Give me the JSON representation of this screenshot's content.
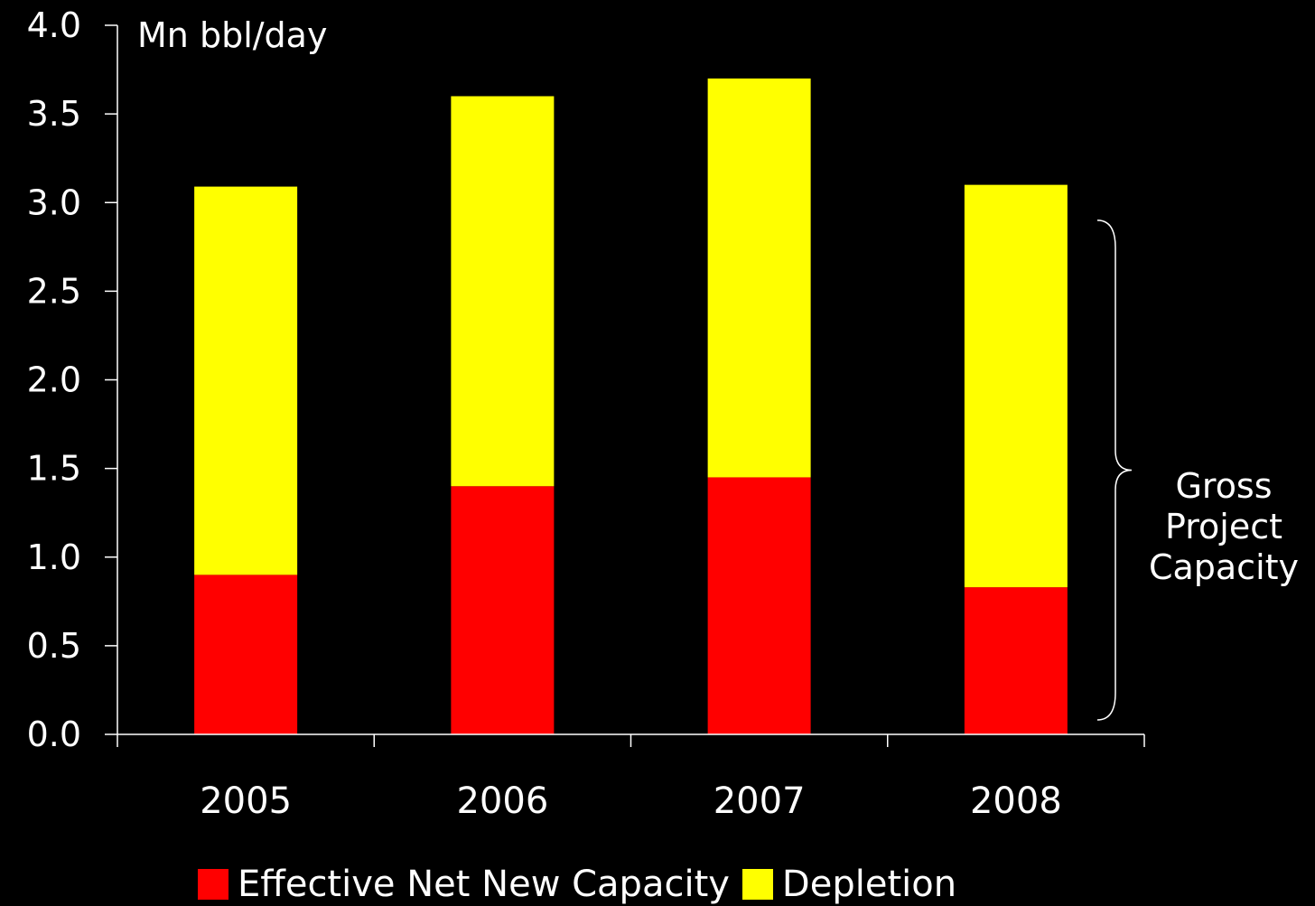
{
  "chart_data": {
    "type": "bar",
    "stacked": true,
    "categories": [
      "2005",
      "2006",
      "2007",
      "2008"
    ],
    "series": [
      {
        "name": "Effective Net New Capacity",
        "color": "#ff0000",
        "values": [
          0.9,
          1.4,
          1.45,
          0.83
        ]
      },
      {
        "name": "Depletion",
        "color": "#ffff00",
        "values": [
          2.19,
          2.2,
          2.25,
          2.27
        ]
      }
    ],
    "ylabel": "Mn bbl/day",
    "ylim": [
      0,
      4.0
    ],
    "yticks": [
      "0.0",
      "0.5",
      "1.0",
      "1.5",
      "2.0",
      "2.5",
      "3.0",
      "3.5",
      "4.0"
    ],
    "grid": false,
    "legend_position": "bottom",
    "annotation": {
      "text": [
        "Gross",
        "Project",
        "Capacity"
      ],
      "brace_range": [
        0,
        2.9
      ]
    }
  }
}
